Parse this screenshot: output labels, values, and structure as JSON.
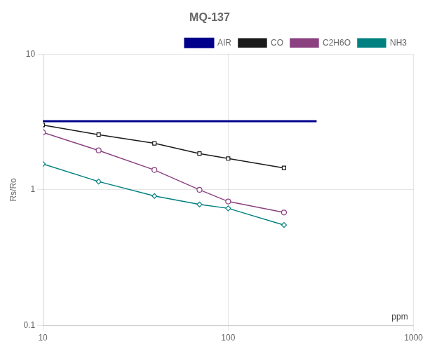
{
  "chart_data": {
    "type": "line",
    "title": "MQ-137",
    "ylabel": "Rs/Ro",
    "annotations": [
      "ppm"
    ],
    "log": true,
    "grid": true,
    "legend": "upper right",
    "xlim": [
      10,
      1000
    ],
    "ylim": [
      0.1,
      10
    ],
    "xticks": [
      10,
      100,
      1000
    ],
    "yticks": [
      0.1,
      1,
      10
    ],
    "series": [
      {
        "name": "AIR",
        "color": "#00008B",
        "marker": "none",
        "line_style": "solid",
        "x": [
          10,
          300
        ],
        "values": [
          3.2,
          3.2
        ]
      },
      {
        "name": "CO",
        "color": "#1a1a1a",
        "marker": "square",
        "line_style": "solid",
        "x": [
          10,
          20,
          40,
          70,
          100,
          200
        ],
        "values": [
          3.0,
          2.55,
          2.2,
          1.85,
          1.7,
          1.45
        ]
      },
      {
        "name": "C2H6O",
        "color": "#8b4080",
        "marker": "circle",
        "line_style": "solid",
        "x": [
          10,
          20,
          40,
          70,
          100,
          200
        ],
        "values": [
          2.65,
          1.95,
          1.4,
          1.0,
          0.82,
          0.68
        ]
      },
      {
        "name": "NH3",
        "color": "#008080",
        "marker": "diamond",
        "line_style": "solid",
        "x": [
          10,
          20,
          40,
          70,
          100,
          200
        ],
        "values": [
          1.55,
          1.15,
          0.9,
          0.78,
          0.73,
          0.55
        ]
      }
    ]
  }
}
